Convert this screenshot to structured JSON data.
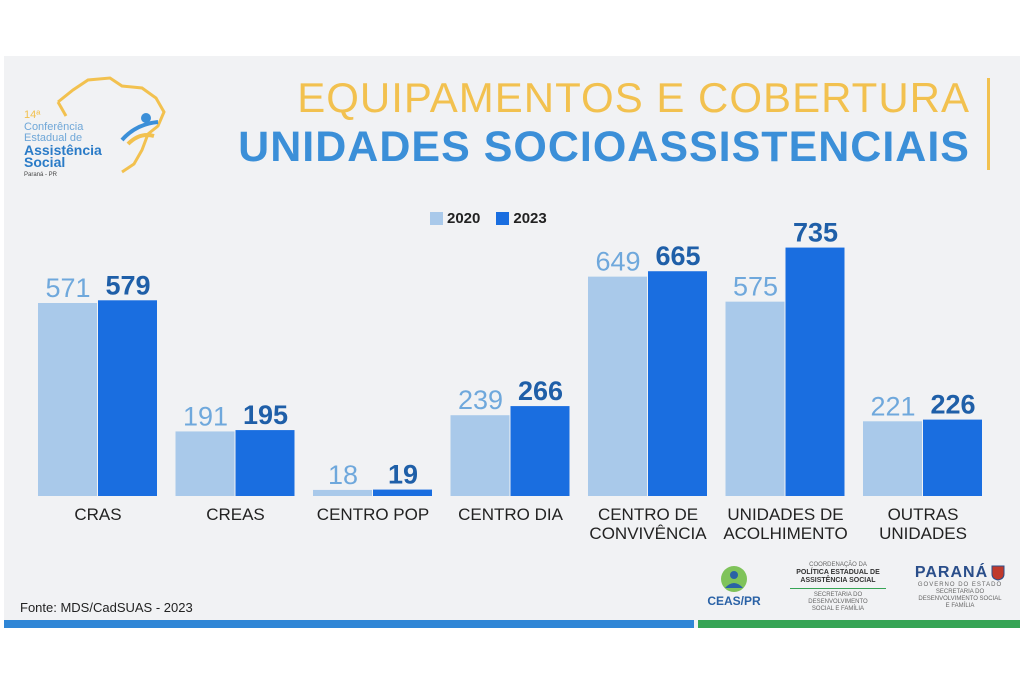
{
  "logo": {
    "edition": "14ª",
    "line1": "Conferência",
    "line2": "Estadual de",
    "line3": "Assistência",
    "line4": "Social",
    "place": "Paraná - PR"
  },
  "header": {
    "title_top": "EQUIPAMENTOS E COBERTURA",
    "title_main": "UNIDADES SOCIOASSISTENCIAIS"
  },
  "footer": {
    "source": "Fonte: MDS/CadSUAS - 2023",
    "ceas": "CEAS/PR",
    "coord_line1": "COORDENAÇÃO DA",
    "coord_line2": "POLÍTICA ESTADUAL DE",
    "coord_line3": "ASSISTÊNCIA SOCIAL",
    "coord_line4": "SECRETARIA DO DESENVOLVIMENTO",
    "coord_line5": "SOCIAL E FAMÍLIA",
    "parana": "PARANÁ",
    "parana_sub": "GOVERNO DO ESTADO",
    "parana_sec1": "SECRETARIA DO",
    "parana_sec2": "DESENVOLVIMENTO SOCIAL",
    "parana_sec3": "E FAMÍLIA"
  },
  "chart_data": {
    "type": "bar",
    "categories": [
      [
        "CRAS"
      ],
      [
        "CREAS"
      ],
      [
        "CENTRO POP"
      ],
      [
        "CENTRO DIA"
      ],
      [
        "CENTRO DE",
        "CONVIVÊNCIA"
      ],
      [
        "UNIDADES DE",
        "ACOLHIMENTO"
      ],
      [
        "OUTRAS",
        "UNIDADES"
      ]
    ],
    "series": [
      {
        "name": "2020",
        "color": "#a9c9ea",
        "values": [
          571,
          191,
          18,
          239,
          649,
          575,
          221
        ]
      },
      {
        "name": "2023",
        "color": "#1a6ee0",
        "values": [
          579,
          195,
          19,
          266,
          665,
          735,
          226
        ]
      }
    ],
    "colors": {
      "label_2020": "#6fa8dc",
      "label_2023": "#1f5fa8"
    },
    "legend": "top-center",
    "grid": false
  }
}
